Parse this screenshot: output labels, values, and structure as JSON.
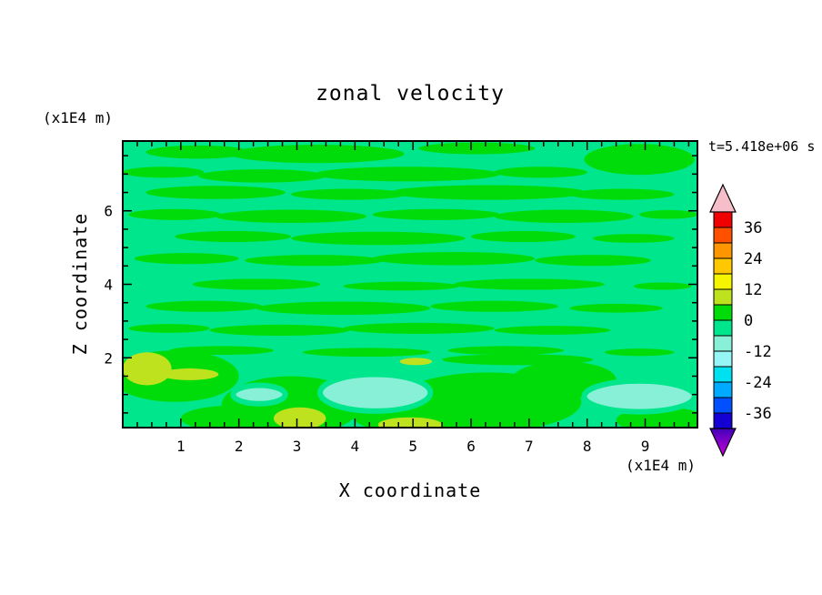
{
  "page": {
    "title": "zonal velocity",
    "y_axis_units": "(x1E4 m)",
    "time_label": "t=5.418e+06 s",
    "y_axis_label": "Z coordinate",
    "x_axis_label": "X coordinate",
    "x_axis_units": "(x1E4 m)"
  },
  "chart_data": {
    "type": "heatmap",
    "subtype": "filled contour plot",
    "title": "zonal velocity",
    "xlabel": "X coordinate",
    "ylabel": "Z coordinate",
    "axis_units": "(x1E4 m)",
    "time_annotation": "t=5.418e+06 s",
    "xlim": [
      0,
      9.9
    ],
    "ylim": [
      0.1,
      7.9
    ],
    "x_ticks": [
      1,
      2,
      3,
      4,
      5,
      6,
      7,
      8,
      9
    ],
    "y_ticks": [
      2,
      4,
      6
    ],
    "x_minor_step": 0.25,
    "y_minor_step": 0.5,
    "grid": false,
    "legend_position": "right colorbar with over/under arrows",
    "colorbar": {
      "labels": [
        36,
        24,
        12,
        0,
        -12,
        -24,
        -36
      ],
      "level_max": 42,
      "level_min": -42,
      "level_step": 6,
      "segment_colors_top_to_bottom": [
        "#F00000",
        "#FF5000",
        "#FF9600",
        "#FFC800",
        "#F5F500",
        "#BEE31E",
        "#00DC0A",
        "#00E68C",
        "#87F0D7",
        "#96F5F5",
        "#00E1F0",
        "#00AAFF",
        "#0050FF",
        "#1400D2"
      ],
      "over_arrow_color": "#F5BEC8",
      "under_arrow_color_top": "#4100B8",
      "under_arrow_color_tip": "#C800DC"
    },
    "field": {
      "background": {
        "level_range": "-6 to 0",
        "color": "#00E68C"
      },
      "levels": {
        "p1": {
          "level_range": "0 to 6",
          "color": "#00DC0A"
        },
        "p2": {
          "level_range": "6 to 12",
          "color": "#BEE31E"
        },
        "n2": {
          "level_range": "-12 to -6",
          "color": "#87F0D7"
        }
      },
      "patch_format": [
        "x_center",
        "z_center",
        "x_radius",
        "z_radius",
        "level_key"
      ],
      "patches": [
        [
          1.3,
          7.6,
          0.9,
          0.18,
          "p1"
        ],
        [
          3.35,
          7.55,
          1.5,
          0.25,
          "p1"
        ],
        [
          6.1,
          7.7,
          1.0,
          0.16,
          "p1"
        ],
        [
          8.9,
          7.4,
          0.95,
          0.42,
          "p1"
        ],
        [
          0.7,
          7.05,
          0.7,
          0.15,
          "p1"
        ],
        [
          2.4,
          6.95,
          1.1,
          0.18,
          "p1"
        ],
        [
          4.9,
          7.0,
          1.6,
          0.2,
          "p1"
        ],
        [
          7.2,
          7.05,
          0.8,
          0.15,
          "p1"
        ],
        [
          1.6,
          6.5,
          1.2,
          0.18,
          "p1"
        ],
        [
          3.9,
          6.45,
          1.0,
          0.15,
          "p1"
        ],
        [
          6.3,
          6.5,
          1.7,
          0.2,
          "p1"
        ],
        [
          8.6,
          6.45,
          0.9,
          0.15,
          "p1"
        ],
        [
          0.9,
          5.9,
          0.8,
          0.15,
          "p1"
        ],
        [
          2.9,
          5.85,
          1.3,
          0.18,
          "p1"
        ],
        [
          5.4,
          5.9,
          1.1,
          0.15,
          "p1"
        ],
        [
          7.6,
          5.85,
          1.2,
          0.18,
          "p1"
        ],
        [
          9.4,
          5.9,
          0.5,
          0.12,
          "p1"
        ],
        [
          1.9,
          5.3,
          1.0,
          0.15,
          "p1"
        ],
        [
          4.4,
          5.25,
          1.5,
          0.18,
          "p1"
        ],
        [
          6.9,
          5.3,
          0.9,
          0.15,
          "p1"
        ],
        [
          8.8,
          5.25,
          0.7,
          0.12,
          "p1"
        ],
        [
          1.1,
          4.7,
          0.9,
          0.15,
          "p1"
        ],
        [
          3.3,
          4.65,
          1.2,
          0.15,
          "p1"
        ],
        [
          5.7,
          4.7,
          1.4,
          0.18,
          "p1"
        ],
        [
          8.1,
          4.65,
          1.0,
          0.15,
          "p1"
        ],
        [
          2.3,
          4.0,
          1.1,
          0.15,
          "p1"
        ],
        [
          4.8,
          3.95,
          1.0,
          0.12,
          "p1"
        ],
        [
          7.0,
          4.0,
          1.3,
          0.15,
          "p1"
        ],
        [
          9.3,
          3.95,
          0.5,
          0.1,
          "p1"
        ],
        [
          1.4,
          3.4,
          1.0,
          0.15,
          "p1"
        ],
        [
          3.8,
          3.35,
          1.5,
          0.18,
          "p1"
        ],
        [
          6.4,
          3.4,
          1.1,
          0.15,
          "p1"
        ],
        [
          8.5,
          3.35,
          0.8,
          0.12,
          "p1"
        ],
        [
          0.8,
          2.8,
          0.7,
          0.12,
          "p1"
        ],
        [
          2.7,
          2.75,
          1.2,
          0.15,
          "p1"
        ],
        [
          5.1,
          2.8,
          1.3,
          0.15,
          "p1"
        ],
        [
          7.4,
          2.75,
          1.0,
          0.12,
          "p1"
        ],
        [
          1.7,
          2.2,
          0.9,
          0.12,
          "p1"
        ],
        [
          4.2,
          2.15,
          1.1,
          0.12,
          "p1"
        ],
        [
          6.6,
          2.2,
          1.0,
          0.12,
          "p1"
        ],
        [
          8.9,
          2.15,
          0.6,
          0.1,
          "p1"
        ],
        [
          6.8,
          1.95,
          1.3,
          0.15,
          "p1"
        ],
        [
          0.9,
          1.5,
          1.1,
          0.7,
          "p1"
        ],
        [
          2.9,
          0.7,
          1.2,
          0.8,
          "p1"
        ],
        [
          6.3,
          0.8,
          1.6,
          0.8,
          "p1"
        ],
        [
          7.6,
          1.4,
          0.9,
          0.5,
          "p1"
        ],
        [
          9.3,
          0.3,
          0.8,
          0.35,
          "p1"
        ],
        [
          4.9,
          0.45,
          0.95,
          0.5,
          "p1"
        ],
        [
          1.9,
          0.35,
          0.9,
          0.35,
          "p1"
        ],
        [
          4.35,
          1.05,
          0.95,
          0.5,
          "n2"
        ],
        [
          8.9,
          0.95,
          0.95,
          0.42,
          "n2"
        ],
        [
          2.35,
          1.0,
          0.45,
          0.25,
          "n2"
        ],
        [
          0.42,
          1.7,
          0.42,
          0.45,
          "p2"
        ],
        [
          1.15,
          1.55,
          0.5,
          0.16,
          "p2"
        ],
        [
          3.05,
          0.35,
          0.45,
          0.3,
          "p2"
        ],
        [
          4.95,
          0.18,
          0.55,
          0.2,
          "p2"
        ],
        [
          5.05,
          1.9,
          0.28,
          0.1,
          "p2"
        ]
      ]
    }
  }
}
